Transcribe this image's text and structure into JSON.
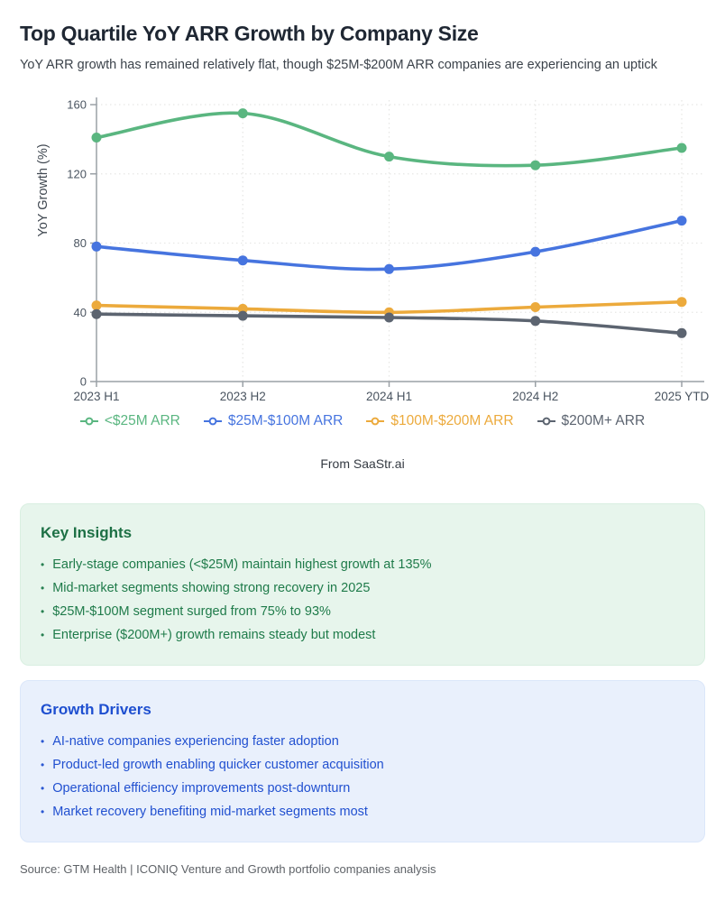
{
  "header": {
    "title": "Top Quartile YoY ARR Growth by Company Size",
    "subtitle": "YoY ARR growth has remained relatively flat, though $25M-$200M ARR companies are experiencing an uptick"
  },
  "chart_data": {
    "type": "line",
    "categories": [
      "2023 H1",
      "2023 H2",
      "2024 H1",
      "2024 H2",
      "2025 YTD"
    ],
    "series": [
      {
        "name": "<$25M ARR",
        "color": "#5ab680",
        "values": [
          141,
          155,
          130,
          125,
          135
        ]
      },
      {
        "name": "$25M-$100M ARR",
        "color": "#4674df",
        "values": [
          78,
          70,
          65,
          75,
          93
        ]
      },
      {
        "name": "$100M-$200M ARR",
        "color": "#ecaa3c",
        "values": [
          44,
          42,
          40,
          43,
          46
        ]
      },
      {
        "name": "$200M+ ARR",
        "color": "#5c6470",
        "values": [
          39,
          38,
          37,
          35,
          28
        ]
      }
    ],
    "title": "",
    "xlabel": "",
    "ylabel": "YoY Growth (%)",
    "ylim": [
      0,
      160
    ],
    "yticks": [
      0,
      40,
      80,
      120,
      160
    ],
    "grid": true,
    "legend_position": "bottom",
    "line_style": "smooth",
    "marker": "filled-circle"
  },
  "attribution": "From SaaStr.ai",
  "insights": {
    "title": "Key Insights",
    "items": [
      "Early-stage companies (<$25M) maintain highest growth at 135%",
      "Mid-market segments showing strong recovery in 2025",
      "$25M-$100M segment surged from 75% to 93%",
      "Enterprise ($200M+) growth remains steady but modest"
    ]
  },
  "drivers": {
    "title": "Growth Drivers",
    "items": [
      "AI-native companies experiencing faster adoption",
      "Product-led growth enabling quicker customer acquisition",
      "Operational efficiency improvements post-downturn",
      "Market recovery benefiting mid-market segments most"
    ]
  },
  "footer": {
    "source": "Source: GTM Health | ICONIQ Venture and Growth portfolio companies analysis"
  },
  "bullet_glyph": "•"
}
